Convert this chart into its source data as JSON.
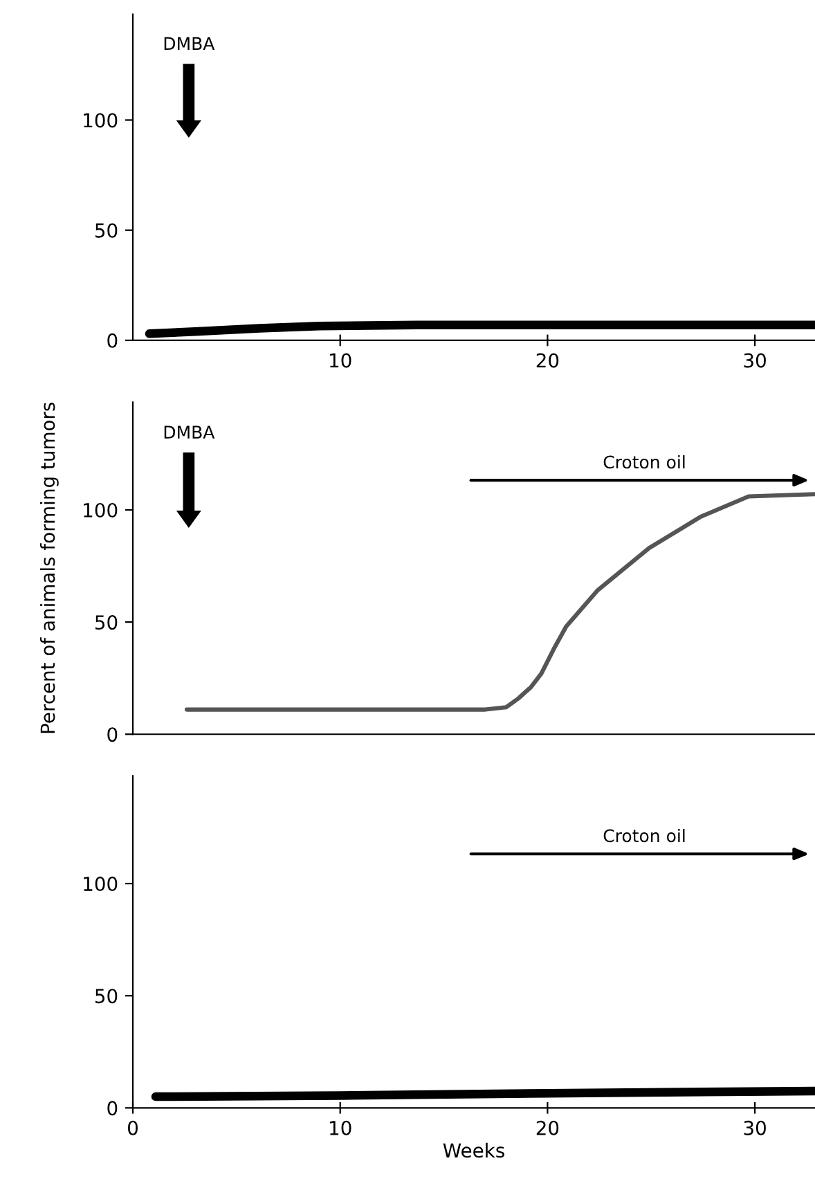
{
  "chart_data": [
    {
      "type": "line",
      "xlim": [
        0,
        32.9
      ],
      "xticks": [
        10,
        20,
        30
      ],
      "ylim": [
        0,
        148
      ],
      "yticks": [
        0,
        50,
        100
      ],
      "grid": false,
      "legend": false,
      "marker": "none",
      "line_style": "solid",
      "series": [
        {
          "color": "#000000",
          "x": [
            0.8,
            3,
            6.1,
            9,
            13.7,
            20,
            26,
            32.9
          ],
          "values": [
            3,
            4,
            5.5,
            6.5,
            7,
            7,
            7,
            7
          ]
        }
      ],
      "annotations": [
        "DMBA"
      ]
    },
    {
      "type": "line",
      "xlim": [
        0,
        32.9
      ],
      "ylim": [
        0,
        148
      ],
      "yticks": [
        0,
        50,
        100
      ],
      "grid": false,
      "legend": false,
      "marker": "none",
      "line_style": "solid",
      "tick_labels": "y",
      "ylabel": "Percent of animals forming tumors",
      "series": [
        {
          "color": "#555555",
          "x": [
            2.6,
            10,
            17,
            18,
            18.6,
            19.2,
            19.7,
            20.3,
            20.9,
            22.4,
            24.9,
            27.4,
            29.7,
            32.9
          ],
          "values": [
            11,
            11,
            11,
            12,
            16,
            21,
            27,
            38,
            48,
            64,
            83,
            97,
            106,
            107
          ]
        }
      ],
      "annotations": [
        "DMBA",
        "Croton oil"
      ]
    },
    {
      "type": "line",
      "xlim": [
        0,
        32.9
      ],
      "xticks": [
        0,
        10,
        20,
        30
      ],
      "ylim": [
        0,
        148
      ],
      "yticks": [
        0,
        50,
        100
      ],
      "grid": false,
      "legend": false,
      "marker": "none",
      "line_style": "solid",
      "xlabel": "Weeks",
      "series": [
        {
          "color": "#000000",
          "x": [
            1.1,
            10,
            20,
            32.9
          ],
          "values": [
            5,
            5.5,
            6.5,
            7.5
          ]
        }
      ],
      "annotations": [
        "Croton oil"
      ]
    }
  ]
}
